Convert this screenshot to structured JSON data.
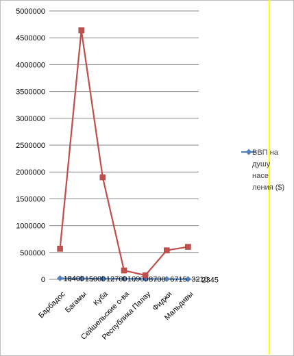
{
  "chart_data": {
    "type": "line",
    "categories": [
      "Барбадос",
      "Багамы",
      "Куба",
      "Сейшельские о-ва",
      "Республика Палау",
      "Фиджи",
      "Мальдивы"
    ],
    "series": [
      {
        "name": "ВВП на душу населения ($)",
        "legend_lines": [
          "ВВП на",
          "душу",
          "насе",
          "ления ($)"
        ],
        "color": "#4f81bd",
        "marker": "diamond",
        "values": [
          18400,
          15000,
          12700,
          10900,
          8700,
          6715,
          3210
        ],
        "value_labels": [
          "18400",
          "15000",
          "12700",
          "10900",
          "8700",
          "6715",
          "3210"
        ],
        "extra_label": "2345"
      },
      {
        "name": "",
        "color": "#c0504d",
        "marker": "square",
        "values": [
          570000,
          4640000,
          1900000,
          165000,
          75000,
          540000,
          605000
        ]
      }
    ],
    "yticks": [
      "0",
      "500000",
      "1000000",
      "1500000",
      "2000000",
      "2500000",
      "3000000",
      "3500000",
      "4000000",
      "4500000",
      "5000000"
    ],
    "ylim": [
      0,
      5000000
    ],
    "grid": true,
    "legend_position": "right"
  }
}
